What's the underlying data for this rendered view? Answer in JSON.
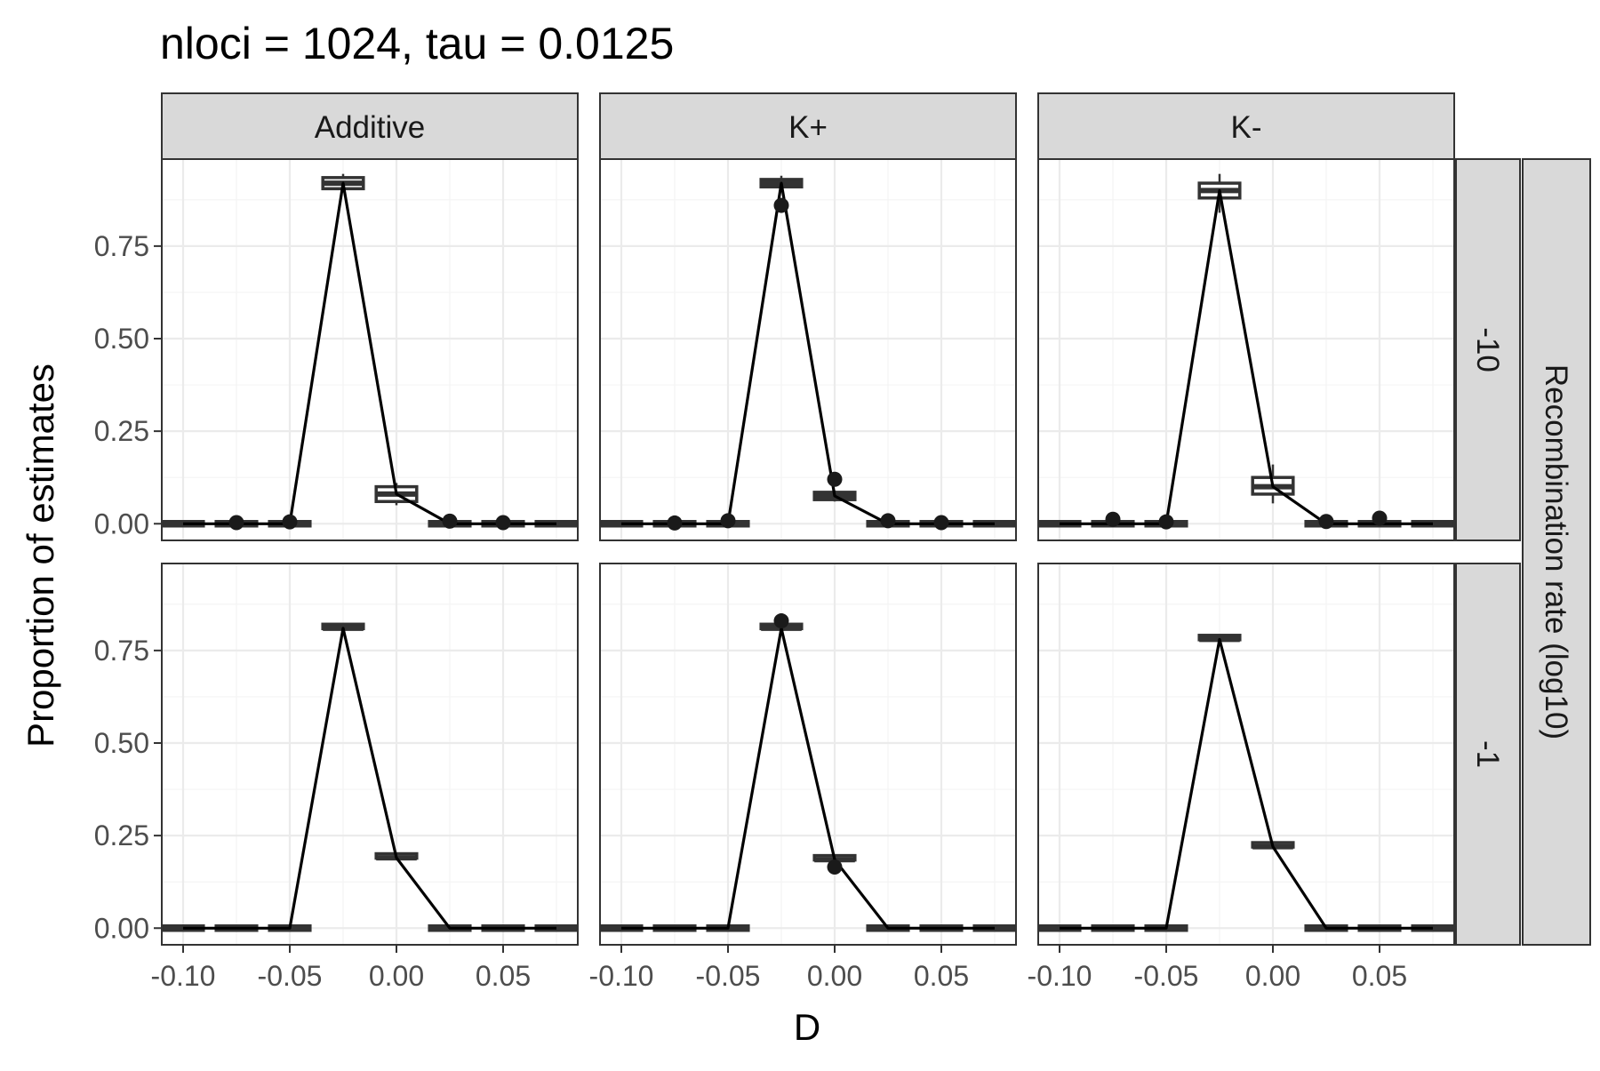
{
  "chart_data": {
    "type": "line",
    "title": "nloci = 1024, tau = 0.0125",
    "xlabel": "D",
    "ylabel": "Proportion of estimates",
    "strip_right_label": "Recombination rate (log10)",
    "columns": [
      "Additive",
      "K+",
      "K-"
    ],
    "rows": [
      "-10",
      "-1"
    ],
    "x": [
      -0.1,
      -0.075,
      -0.05,
      -0.025,
      0.0,
      0.025,
      0.05,
      0.075
    ],
    "xlim": [
      -0.11,
      0.085
    ],
    "ylim": [
      -0.045,
      0.985
    ],
    "x_ticks": [
      -0.1,
      -0.05,
      0.0,
      0.05
    ],
    "x_tick_labels": [
      "-0.10",
      "-0.05",
      "0.00",
      "0.05"
    ],
    "y_ticks": [
      0,
      0.25,
      0.5,
      0.75
    ],
    "y_tick_labels": [
      "0.00",
      "0.25",
      "0.50",
      "0.75"
    ],
    "grid": true,
    "panels": [
      {
        "column": "Additive",
        "row": "-10",
        "line": [
          0,
          0,
          0,
          0.92,
          0.08,
          0,
          0,
          0
        ],
        "box_median": [
          0,
          0,
          0,
          0.92,
          0.08,
          0,
          0,
          0
        ],
        "box_q1": [
          0,
          0,
          0,
          0.905,
          0.06,
          0,
          0,
          0
        ],
        "box_q3": [
          0,
          0,
          0,
          0.935,
          0.1,
          0,
          0,
          0
        ],
        "whisker_low": [
          0,
          0,
          0,
          0.895,
          0.05,
          0,
          0,
          0
        ],
        "whisker_high": [
          0,
          0,
          0,
          0.945,
          0.11,
          0,
          0,
          0
        ],
        "outliers": [
          {
            "x": -0.075,
            "y": 0.003
          },
          {
            "x": -0.05,
            "y": 0.005
          },
          {
            "x": 0.025,
            "y": 0.007
          },
          {
            "x": 0.05,
            "y": 0.003
          }
        ]
      },
      {
        "column": "K+",
        "row": "-10",
        "line": [
          0,
          0,
          0,
          0.92,
          0.075,
          0,
          0,
          0
        ],
        "box_median": [
          0,
          0,
          0,
          0.92,
          0.075,
          0,
          0,
          0
        ],
        "box_q1": [
          0,
          0,
          0,
          0.91,
          0.065,
          0,
          0,
          0
        ],
        "box_q3": [
          0,
          0,
          0,
          0.93,
          0.085,
          0,
          0,
          0
        ],
        "whisker_low": [
          0,
          0,
          0,
          0.905,
          0.06,
          0,
          0,
          0
        ],
        "whisker_high": [
          0,
          0,
          0,
          0.94,
          0.09,
          0,
          0,
          0
        ],
        "outliers": [
          {
            "x": -0.075,
            "y": 0.002
          },
          {
            "x": -0.05,
            "y": 0.008
          },
          {
            "x": -0.025,
            "y": 0.86
          },
          {
            "x": 0.0,
            "y": 0.12
          },
          {
            "x": 0.025,
            "y": 0.008
          },
          {
            "x": 0.05,
            "y": 0.003
          }
        ]
      },
      {
        "column": "K-",
        "row": "-10",
        "line": [
          0,
          0,
          0,
          0.9,
          0.1,
          0,
          0,
          0
        ],
        "box_median": [
          0,
          0,
          0,
          0.9,
          0.1,
          0,
          0,
          0
        ],
        "box_q1": [
          0,
          0,
          0,
          0.88,
          0.08,
          0,
          0,
          0
        ],
        "box_q3": [
          0,
          0,
          0,
          0.92,
          0.125,
          0,
          0,
          0
        ],
        "whisker_low": [
          0,
          0,
          0,
          0.84,
          0.055,
          0,
          0,
          0
        ],
        "whisker_high": [
          0,
          0,
          0,
          0.945,
          0.16,
          0,
          0,
          0
        ],
        "outliers": [
          {
            "x": -0.075,
            "y": 0.012
          },
          {
            "x": -0.05,
            "y": 0.005
          },
          {
            "x": 0.025,
            "y": 0.006
          },
          {
            "x": 0.05,
            "y": 0.015
          }
        ]
      },
      {
        "column": "Additive",
        "row": "-1",
        "line": [
          0,
          0,
          0,
          0.81,
          0.19,
          0,
          0,
          0
        ],
        "box_median": [
          0,
          0,
          0,
          0.81,
          0.19,
          0,
          0,
          0
        ],
        "box_q1": [
          0,
          0,
          0,
          0.805,
          0.185,
          0,
          0,
          0
        ],
        "box_q3": [
          0,
          0,
          0,
          0.815,
          0.195,
          0,
          0,
          0
        ],
        "whisker_low": [
          0,
          0,
          0,
          0.805,
          0.185,
          0,
          0,
          0
        ],
        "whisker_high": [
          0,
          0,
          0,
          0.815,
          0.195,
          0,
          0,
          0
        ],
        "outliers": []
      },
      {
        "column": "K+",
        "row": "-1",
        "line": [
          0,
          0,
          0,
          0.81,
          0.185,
          0,
          0,
          0
        ],
        "box_median": [
          0,
          0,
          0,
          0.81,
          0.185,
          0,
          0,
          0
        ],
        "box_q1": [
          0,
          0,
          0,
          0.805,
          0.18,
          0,
          0,
          0
        ],
        "box_q3": [
          0,
          0,
          0,
          0.815,
          0.19,
          0,
          0,
          0
        ],
        "whisker_low": [
          0,
          0,
          0,
          0.805,
          0.18,
          0,
          0,
          0
        ],
        "whisker_high": [
          0,
          0,
          0,
          0.815,
          0.19,
          0,
          0,
          0
        ],
        "outliers": [
          {
            "x": -0.025,
            "y": 0.83
          },
          {
            "x": 0.0,
            "y": 0.165
          }
        ]
      },
      {
        "column": "K-",
        "row": "-1",
        "line": [
          0,
          0,
          0,
          0.78,
          0.22,
          0,
          0,
          0
        ],
        "box_median": [
          0,
          0,
          0,
          0.78,
          0.22,
          0,
          0,
          0
        ],
        "box_q1": [
          0,
          0,
          0,
          0.775,
          0.215,
          0,
          0,
          0
        ],
        "box_q3": [
          0,
          0,
          0,
          0.785,
          0.225,
          0,
          0,
          0
        ],
        "whisker_low": [
          0,
          0,
          0,
          0.775,
          0.215,
          0,
          0,
          0
        ],
        "whisker_high": [
          0,
          0,
          0,
          0.785,
          0.225,
          0,
          0,
          0
        ],
        "outliers": []
      }
    ]
  },
  "colors": {
    "strip_fill": "#d9d9d9",
    "panel_border": "#333333",
    "grid_major": "#ebebeb",
    "grid_minor": "#f4f4f4",
    "line": "#000000",
    "point": "#1a1a1a",
    "text": "#000000",
    "tick_text": "#4d4d4d"
  }
}
